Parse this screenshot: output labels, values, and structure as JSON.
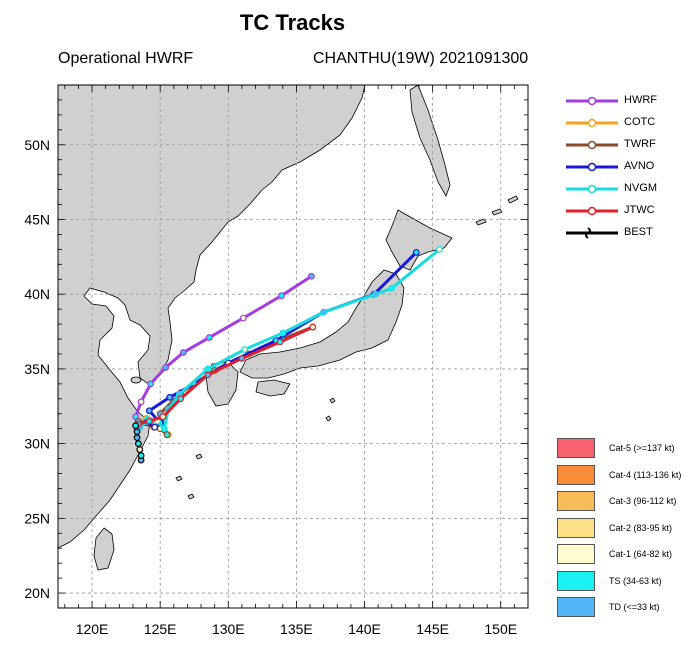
{
  "title": "TC Tracks",
  "subtitle_left": "Operational HWRF",
  "subtitle_right": "CHANTHU(19W) 2021091300",
  "axes": {
    "lon_range": [
      117.5,
      152
    ],
    "lat_range": [
      19,
      54
    ],
    "x_ticks": [
      "120E",
      "125E",
      "130E",
      "135E",
      "140E",
      "145E",
      "150E"
    ],
    "x_tick_values": [
      120,
      125,
      130,
      135,
      140,
      145,
      150
    ],
    "y_ticks": [
      "20N",
      "25N",
      "30N",
      "35N",
      "40N",
      "45N",
      "50N"
    ],
    "y_tick_values": [
      20,
      25,
      30,
      35,
      40,
      45,
      50
    ],
    "grid": "dashed"
  },
  "legend": [
    {
      "name": "HWRF",
      "color": "#a43ce0"
    },
    {
      "name": "COTC",
      "color": "#f5a21e"
    },
    {
      "name": "TWRF",
      "color": "#8b4a2b"
    },
    {
      "name": "AVNO",
      "color": "#1818d8"
    },
    {
      "name": "NVGM",
      "color": "#16dde0"
    },
    {
      "name": "JTWC",
      "color": "#e0202c"
    },
    {
      "name": "BEST",
      "color": "#000000"
    }
  ],
  "categories": [
    {
      "label": "Cat-5 (>=137 kt)",
      "color": "#f7636d"
    },
    {
      "label": "Cat-4 (113-136 kt)",
      "color": "#f88c3a"
    },
    {
      "label": "Cat-3 (96-112 kt)",
      "color": "#f8bd5a"
    },
    {
      "label": "Cat-2 (83-95 kt)",
      "color": "#fbe088"
    },
    {
      "label": "Cat-1 (64-82 kt)",
      "color": "#fefcd0"
    },
    {
      "label": "TS (34-63 kt)",
      "color": "#1af1f2"
    },
    {
      "label": "TD (<=33 kt)",
      "color": "#52b5f7"
    }
  ],
  "chart_data": {
    "type": "scatter",
    "title": "TC Tracks",
    "xlabel": "",
    "ylabel": "",
    "xlim": [
      117.5,
      152
    ],
    "ylim": [
      19,
      54
    ],
    "series": [
      {
        "name": "HWRF",
        "color": "#a43ce0",
        "points": [
          [
            123.3,
            31.0
          ],
          [
            123.2,
            31.8
          ],
          [
            123.6,
            32.8
          ],
          [
            124.3,
            34.0
          ],
          [
            125.4,
            35.1
          ],
          [
            126.7,
            36.1
          ],
          [
            128.6,
            37.1
          ],
          [
            131.1,
            38.4
          ],
          [
            133.9,
            39.9
          ],
          [
            136.1,
            41.2
          ]
        ]
      },
      {
        "name": "COTC",
        "color": "#f5a21e",
        "points": [
          [
            123.3,
            31.3
          ],
          [
            124.0,
            31.7
          ],
          [
            124.5,
            31.1
          ],
          [
            125.1,
            31.3
          ],
          [
            125.6,
            30.6
          ]
        ]
      },
      {
        "name": "TWRF",
        "color": "#8b4a2b",
        "points": [
          [
            123.4,
            31.5
          ],
          [
            124.3,
            31.3
          ],
          [
            125.0,
            31.0
          ],
          [
            125.5,
            30.6
          ],
          [
            125.0,
            32.0
          ],
          [
            126.5,
            33.4
          ],
          [
            129.0,
            34.9
          ],
          [
            131.5,
            36.0
          ],
          [
            134.0,
            37.0
          ],
          [
            136.2,
            37.8
          ]
        ]
      },
      {
        "name": "AVNO",
        "color": "#1818d8",
        "points": [
          [
            123.4,
            31.2
          ],
          [
            124.0,
            31.4
          ],
          [
            124.6,
            31.1
          ],
          [
            125.0,
            31.4
          ],
          [
            124.2,
            32.2
          ],
          [
            125.7,
            33.1
          ],
          [
            127.5,
            34.0
          ],
          [
            130.0,
            35.4
          ],
          [
            133.5,
            36.9
          ],
          [
            137.0,
            38.8
          ],
          [
            140.7,
            40.0
          ],
          [
            143.8,
            42.8
          ]
        ]
      },
      {
        "name": "NVGM",
        "color": "#16dde0",
        "points": [
          [
            123.5,
            31.1
          ],
          [
            124.2,
            31.6
          ],
          [
            124.8,
            31.5
          ],
          [
            125.3,
            31.0
          ],
          [
            125.6,
            32.3
          ],
          [
            126.4,
            33.3
          ],
          [
            128.5,
            35.0
          ],
          [
            131.2,
            36.3
          ],
          [
            134.0,
            37.4
          ],
          [
            137.0,
            38.8
          ],
          [
            140.8,
            40.0
          ],
          [
            142.0,
            40.4
          ],
          [
            145.5,
            43.0
          ]
        ]
      },
      {
        "name": "JTWC",
        "color": "#e0202c",
        "points": [
          [
            123.4,
            31.3
          ],
          [
            124.2,
            31.5
          ],
          [
            125.2,
            31.8
          ],
          [
            126.5,
            33.0
          ],
          [
            128.5,
            34.6
          ],
          [
            131.0,
            35.7
          ],
          [
            133.8,
            36.8
          ],
          [
            136.2,
            37.8
          ]
        ]
      },
      {
        "name": "BEST",
        "color": "#000000",
        "points": [
          [
            123.6,
            28.9
          ],
          [
            123.6,
            29.2
          ],
          [
            123.5,
            29.6
          ],
          [
            123.4,
            30.0
          ],
          [
            123.3,
            30.4
          ],
          [
            123.3,
            30.8
          ],
          [
            123.2,
            31.2
          ]
        ]
      }
    ]
  }
}
